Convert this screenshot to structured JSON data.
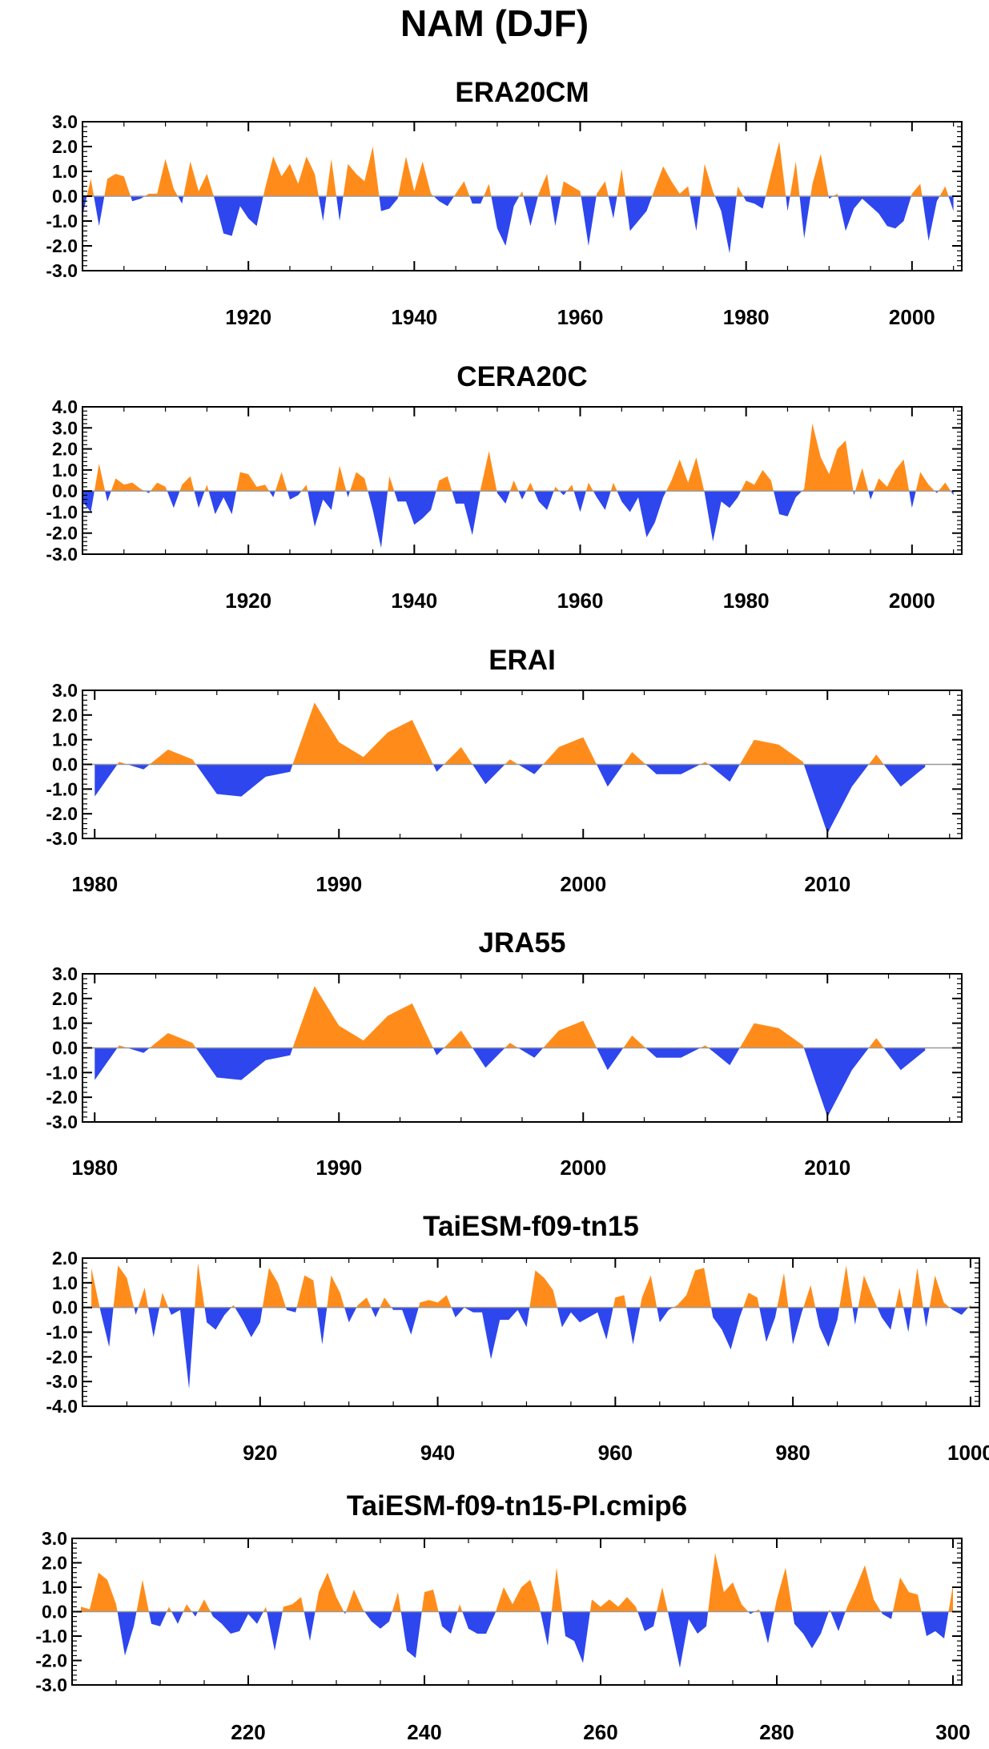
{
  "title": "NAM (DJF)",
  "colors": {
    "positive": "#ff8c1a",
    "negative": "#2e46ee",
    "axis": "#000000",
    "zero_line": "#999999"
  },
  "chart_data": [
    {
      "type": "area",
      "title": "ERA20CM",
      "xlim": [
        1900,
        2006
      ],
      "ylim": [
        -3,
        3
      ],
      "yticks": [
        "3.0",
        "2.0",
        "1.0",
        "0.0",
        "-1.0",
        "-2.0",
        "-3.0"
      ],
      "xticks": [
        1920,
        1940,
        1960,
        1980,
        2000
      ],
      "x": [
        1900,
        1901,
        1902,
        1903,
        1904,
        1905,
        1906,
        1907,
        1908,
        1909,
        1910,
        1911,
        1912,
        1913,
        1914,
        1915,
        1916,
        1917,
        1918,
        1919,
        1920,
        1921,
        1922,
        1923,
        1924,
        1925,
        1926,
        1927,
        1928,
        1929,
        1930,
        1931,
        1932,
        1933,
        1934,
        1935,
        1936,
        1937,
        1938,
        1939,
        1940,
        1941,
        1942,
        1943,
        1944,
        1945,
        1946,
        1947,
        1948,
        1949,
        1950,
        1951,
        1952,
        1953,
        1954,
        1955,
        1956,
        1957,
        1958,
        1959,
        1960,
        1961,
        1962,
        1963,
        1964,
        1965,
        1966,
        1967,
        1968,
        1969,
        1970,
        1971,
        1972,
        1973,
        1974,
        1975,
        1976,
        1977,
        1978,
        1979,
        1980,
        1981,
        1982,
        1983,
        1984,
        1985,
        1986,
        1987,
        1988,
        1989,
        1990,
        1991,
        1992,
        1993,
        1994,
        1995,
        1996,
        1997,
        1998,
        1999,
        2000,
        2001,
        2002,
        2003,
        2004,
        2005
      ],
      "values": [
        -0.8,
        0.7,
        -1.2,
        0.7,
        0.9,
        0.8,
        -0.2,
        -0.1,
        0.1,
        0.1,
        1.5,
        0.3,
        -0.3,
        1.4,
        0.2,
        0.9,
        -0.2,
        -1.5,
        -1.6,
        -0.4,
        -0.9,
        -1.2,
        0.3,
        1.6,
        0.8,
        1.3,
        0.5,
        1.6,
        0.9,
        -1.0,
        1.5,
        -1.0,
        1.3,
        0.9,
        0.6,
        2.0,
        -0.6,
        -0.5,
        -0.1,
        1.6,
        0.2,
        1.4,
        0.1,
        -0.2,
        -0.4,
        0.1,
        0.6,
        -0.3,
        -0.3,
        0.5,
        -1.3,
        -2.0,
        -0.4,
        0.2,
        -1.2,
        0.1,
        0.9,
        -1.2,
        0.6,
        0.4,
        0.2,
        -2.0,
        0.1,
        0.6,
        -0.9,
        1.1,
        -1.4,
        -1.0,
        -0.6,
        0.3,
        1.2,
        0.6,
        0.1,
        0.4,
        -1.4,
        1.3,
        0.2,
        -0.6,
        -2.3,
        0.4,
        -0.2,
        -0.3,
        -0.5,
        0.9,
        2.2,
        -0.6,
        1.4,
        -1.7,
        0.5,
        1.7,
        -0.1,
        0.1,
        -1.4,
        -0.5,
        -0.1,
        -0.4,
        -0.7,
        -1.2,
        -1.3,
        -1.0,
        0.1,
        0.5,
        -1.8,
        -0.2,
        0.4,
        -0.6
      ]
    },
    {
      "type": "area",
      "title": "CERA20C",
      "xlim": [
        1900,
        2006
      ],
      "ylim": [
        -3,
        4
      ],
      "yticks": [
        "4.0",
        "3.0",
        "2.0",
        "1.0",
        "0.0",
        "-1.0",
        "-2.0",
        "-3.0"
      ],
      "xticks": [
        1920,
        1940,
        1960,
        1980,
        2000
      ],
      "x": [
        1900,
        1901,
        1902,
        1903,
        1904,
        1905,
        1906,
        1907,
        1908,
        1909,
        1910,
        1911,
        1912,
        1913,
        1914,
        1915,
        1916,
        1917,
        1918,
        1919,
        1920,
        1921,
        1922,
        1923,
        1924,
        1925,
        1926,
        1927,
        1928,
        1929,
        1930,
        1931,
        1932,
        1933,
        1934,
        1935,
        1936,
        1937,
        1938,
        1939,
        1940,
        1941,
        1942,
        1943,
        1944,
        1945,
        1946,
        1947,
        1948,
        1949,
        1950,
        1951,
        1952,
        1953,
        1954,
        1955,
        1956,
        1957,
        1958,
        1959,
        1960,
        1961,
        1962,
        1963,
        1964,
        1965,
        1966,
        1967,
        1968,
        1969,
        1970,
        1971,
        1972,
        1973,
        1974,
        1975,
        1976,
        1977,
        1978,
        1979,
        1980,
        1981,
        1982,
        1983,
        1984,
        1985,
        1986,
        1987,
        1988,
        1989,
        1990,
        1991,
        1992,
        1993,
        1994,
        1995,
        1996,
        1997,
        1998,
        1999,
        2000,
        2001,
        2002,
        2003,
        2004,
        2005
      ],
      "values": [
        -0.5,
        -1.0,
        1.3,
        -0.5,
        0.6,
        0.3,
        0.4,
        0.1,
        -0.1,
        0.4,
        0.2,
        -0.8,
        0.3,
        0.7,
        -0.8,
        0.3,
        -1.1,
        -0.3,
        -1.1,
        0.9,
        0.8,
        0.2,
        0.3,
        -0.3,
        0.9,
        -0.4,
        -0.2,
        0.3,
        -1.7,
        -0.4,
        -0.9,
        1.2,
        -0.3,
        0.9,
        0.6,
        -0.9,
        -2.7,
        0.7,
        -0.5,
        -0.5,
        -1.6,
        -1.3,
        -0.9,
        0.5,
        0.7,
        -0.6,
        -0.6,
        -2.1,
        0.1,
        1.9,
        -0.1,
        -0.6,
        0.5,
        -0.4,
        0.4,
        -0.5,
        -0.9,
        0.2,
        -0.2,
        0.3,
        -1.0,
        0.4,
        -0.3,
        -0.9,
        0.4,
        -0.5,
        -1.0,
        -0.3,
        -2.2,
        -1.5,
        -0.3,
        0.5,
        1.5,
        0.4,
        1.6,
        -0.1,
        -2.4,
        -0.5,
        -0.8,
        -0.3,
        0.5,
        0.3,
        1.0,
        0.5,
        -1.1,
        -1.2,
        -0.3,
        0.1,
        3.2,
        1.6,
        0.8,
        2.0,
        2.4,
        -0.2,
        1.1,
        -0.4,
        0.6,
        0.2,
        1.0,
        1.5,
        -0.8,
        0.9,
        0.3,
        -0.1,
        0.4,
        -0.2
      ]
    },
    {
      "type": "area",
      "title": "ERAI",
      "xlim": [
        1979.5,
        2015.5
      ],
      "ylim": [
        -3,
        3
      ],
      "yticks": [
        "3.0",
        "2.0",
        "1.0",
        "0.0",
        "-1.0",
        "-2.0",
        "-3.0"
      ],
      "xticks": [
        1980,
        1990,
        2000,
        2010
      ],
      "x": [
        1980,
        1981,
        1982,
        1983,
        1984,
        1985,
        1986,
        1987,
        1988,
        1989,
        1990,
        1991,
        1992,
        1993,
        1994,
        1995,
        1996,
        1997,
        1998,
        1999,
        2000,
        2001,
        2002,
        2003,
        2004,
        2005,
        2006,
        2007,
        2008,
        2009,
        2010,
        2011,
        2012,
        2013,
        2014
      ],
      "values": [
        -1.3,
        0.1,
        -0.2,
        0.6,
        0.2,
        -1.2,
        -1.3,
        -0.5,
        -0.3,
        2.5,
        0.9,
        0.3,
        1.3,
        1.8,
        -0.3,
        0.7,
        -0.8,
        0.2,
        -0.4,
        0.7,
        1.1,
        -0.9,
        0.5,
        -0.4,
        -0.4,
        0.1,
        -0.7,
        1.0,
        0.8,
        0.1,
        -2.8,
        -0.9,
        0.4,
        -0.9,
        -0.1
      ]
    },
    {
      "type": "area",
      "title": "JRA55",
      "xlim": [
        1979.5,
        2015.5
      ],
      "ylim": [
        -3,
        3
      ],
      "yticks": [
        "3.0",
        "2.0",
        "1.0",
        "0.0",
        "-1.0",
        "-2.0",
        "-3.0"
      ],
      "xticks": [
        1980,
        1990,
        2000,
        2010
      ],
      "x": [
        1980,
        1981,
        1982,
        1983,
        1984,
        1985,
        1986,
        1987,
        1988,
        1989,
        1990,
        1991,
        1992,
        1993,
        1994,
        1995,
        1996,
        1997,
        1998,
        1999,
        2000,
        2001,
        2002,
        2003,
        2004,
        2005,
        2006,
        2007,
        2008,
        2009,
        2010,
        2011,
        2012,
        2013,
        2014
      ],
      "values": [
        -1.3,
        0.1,
        -0.2,
        0.6,
        0.2,
        -1.2,
        -1.3,
        -0.5,
        -0.3,
        2.5,
        0.9,
        0.3,
        1.3,
        1.8,
        -0.3,
        0.7,
        -0.8,
        0.2,
        -0.4,
        0.7,
        1.1,
        -0.9,
        0.5,
        -0.4,
        -0.4,
        0.1,
        -0.7,
        1.0,
        0.8,
        0.1,
        -2.8,
        -0.9,
        0.4,
        -0.9,
        -0.1
      ]
    },
    {
      "type": "area",
      "title": "TaiESM-f09-tn15",
      "xlim": [
        900,
        1001
      ],
      "ylim": [
        -4,
        2
      ],
      "yticks": [
        "2.0",
        "1.0",
        "0.0",
        "-1.0",
        "-2.0",
        "-3.0",
        "-4.0"
      ],
      "xticks": [
        920,
        940,
        960,
        980,
        1000
      ],
      "x": [
        901,
        902,
        903,
        904,
        905,
        906,
        907,
        908,
        909,
        910,
        911,
        912,
        913,
        914,
        915,
        916,
        917,
        918,
        919,
        920,
        921,
        922,
        923,
        924,
        925,
        926,
        927,
        928,
        929,
        930,
        931,
        932,
        933,
        934,
        935,
        936,
        937,
        938,
        939,
        940,
        941,
        942,
        943,
        944,
        945,
        946,
        947,
        948,
        949,
        950,
        951,
        952,
        953,
        954,
        955,
        956,
        957,
        958,
        959,
        960,
        961,
        962,
        963,
        964,
        965,
        966,
        967,
        968,
        969,
        970,
        971,
        972,
        973,
        974,
        975,
        976,
        977,
        978,
        979,
        980,
        981,
        982,
        983,
        984,
        985,
        986,
        987,
        988,
        989,
        990,
        991,
        992,
        993,
        994,
        995,
        996,
        997,
        998,
        999,
        1000
      ],
      "values": [
        1.6,
        -0.1,
        -1.6,
        1.7,
        1.2,
        -0.3,
        0.8,
        -1.2,
        0.6,
        -0.3,
        -0.1,
        -3.3,
        1.8,
        -0.6,
        -0.9,
        -0.3,
        0.1,
        -0.5,
        -1.2,
        -0.6,
        1.6,
        1.0,
        -0.1,
        -0.2,
        1.3,
        1.1,
        -1.5,
        1.3,
        0.6,
        -0.6,
        0.1,
        0.4,
        -0.4,
        0.4,
        -0.1,
        -0.1,
        -1.1,
        0.2,
        0.3,
        0.2,
        0.5,
        -0.4,
        0.0,
        -0.2,
        -0.2,
        -2.1,
        -0.5,
        -0.5,
        -0.1,
        -0.8,
        1.5,
        1.2,
        0.7,
        -0.8,
        -0.2,
        -0.6,
        -0.4,
        -0.2,
        -1.3,
        0.4,
        0.5,
        -1.5,
        0.4,
        1.3,
        -0.6,
        -0.1,
        0.1,
        0.5,
        1.5,
        1.6,
        -0.4,
        -0.9,
        -1.7,
        -0.4,
        0.6,
        0.4,
        -1.4,
        -0.4,
        1.4,
        -1.5,
        -0.2,
        0.9,
        -0.8,
        -1.6,
        -0.5,
        1.7,
        -0.7,
        1.3,
        0.4,
        -0.4,
        -0.9,
        0.8,
        -1.0,
        1.6,
        -0.8,
        1.3,
        0.2,
        -0.1,
        -0.3,
        0.1
      ]
    },
    {
      "type": "area",
      "title": "TaiESM-f09-tn15-PI.cmip6",
      "xlim": [
        200,
        301
      ],
      "ylim": [
        -3,
        3
      ],
      "yticks": [
        "3.0",
        "2.0",
        "1.0",
        "0.0",
        "-1.0",
        "-2.0",
        "-3.0"
      ],
      "xticks": [
        220,
        240,
        260,
        280,
        300
      ],
      "x": [
        201,
        202,
        203,
        204,
        205,
        206,
        207,
        208,
        209,
        210,
        211,
        212,
        213,
        214,
        215,
        216,
        217,
        218,
        219,
        220,
        221,
        222,
        223,
        224,
        225,
        226,
        227,
        228,
        229,
        230,
        231,
        232,
        233,
        234,
        235,
        236,
        237,
        238,
        239,
        240,
        241,
        242,
        243,
        244,
        245,
        246,
        247,
        248,
        249,
        250,
        251,
        252,
        253,
        254,
        255,
        256,
        257,
        258,
        259,
        260,
        261,
        262,
        263,
        264,
        265,
        266,
        267,
        268,
        269,
        270,
        271,
        272,
        273,
        274,
        275,
        276,
        277,
        278,
        279,
        280,
        281,
        282,
        283,
        284,
        285,
        286,
        287,
        288,
        289,
        290,
        291,
        292,
        293,
        294,
        295,
        296,
        297,
        298,
        299,
        300
      ],
      "values": [
        0.2,
        0.1,
        1.6,
        1.3,
        0.3,
        -1.8,
        -0.6,
        1.3,
        -0.5,
        -0.6,
        0.2,
        -0.5,
        0.3,
        -0.2,
        0.5,
        -0.2,
        -0.5,
        -0.9,
        -0.8,
        -0.1,
        -0.5,
        0.2,
        -1.6,
        0.2,
        0.3,
        0.6,
        -1.2,
        0.8,
        1.6,
        0.6,
        -0.1,
        0.9,
        0.1,
        -0.4,
        -0.7,
        -0.4,
        0.8,
        -1.6,
        -1.9,
        0.8,
        0.9,
        -0.6,
        -0.9,
        0.3,
        -0.7,
        -0.9,
        -0.9,
        -0.1,
        1.0,
        0.3,
        1.0,
        1.3,
        0.3,
        -1.4,
        1.8,
        -1.0,
        -1.2,
        -2.1,
        0.5,
        0.2,
        0.5,
        0.2,
        0.6,
        0.2,
        -0.8,
        -0.6,
        1.0,
        -0.6,
        -2.3,
        -0.3,
        -0.9,
        -0.6,
        2.4,
        0.8,
        1.2,
        0.3,
        -0.1,
        0.1,
        -1.3,
        0.5,
        1.8,
        -0.5,
        -0.9,
        -1.5,
        -0.9,
        0.1,
        -0.8,
        0.2,
        1.0,
        1.9,
        0.5,
        -0.1,
        -0.3,
        1.4,
        0.8,
        0.7,
        -1.0,
        -0.8,
        -1.1,
        1.1
      ]
    }
  ]
}
